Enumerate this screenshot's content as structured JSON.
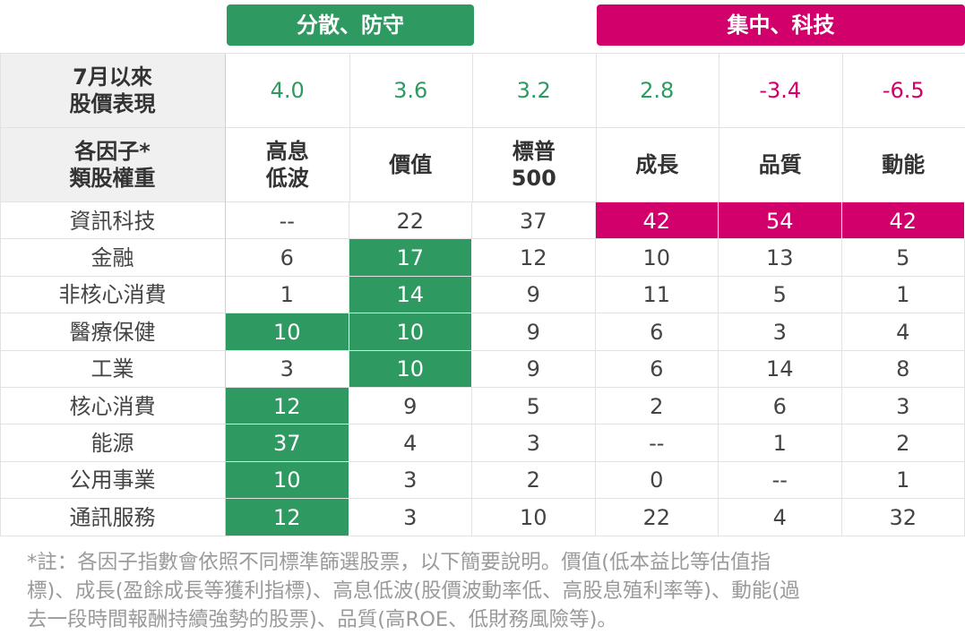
{
  "groups": [
    {
      "label": "分散、防守"
    },
    {
      "label": "集中、科技"
    }
  ],
  "performance": {
    "label": [
      "7月以來",
      "股價表現"
    ],
    "values": [
      "4.0",
      "3.6",
      "3.2",
      "2.8",
      "-3.4",
      "-6.5"
    ]
  },
  "factors": {
    "label": [
      "各因子*",
      "類股權重"
    ],
    "columns": [
      [
        "高息",
        "低波"
      ],
      [
        "價值"
      ],
      [
        "標普",
        "500"
      ],
      [
        "成長"
      ],
      [
        "品質"
      ],
      [
        "動能"
      ]
    ]
  },
  "table": {
    "rows": [
      {
        "label": "資訊科技",
        "values": [
          "--",
          "22",
          "37",
          "42",
          "54",
          "42"
        ]
      },
      {
        "label": "金融",
        "values": [
          "6",
          "17",
          "12",
          "10",
          "13",
          "5"
        ]
      },
      {
        "label": "非核心消費",
        "values": [
          "1",
          "14",
          "9",
          "11",
          "5",
          "1"
        ]
      },
      {
        "label": "醫療保健",
        "values": [
          "10",
          "10",
          "9",
          "6",
          "3",
          "4"
        ]
      },
      {
        "label": "工業",
        "values": [
          "3",
          "10",
          "9",
          "6",
          "14",
          "8"
        ]
      },
      {
        "label": "核心消費",
        "values": [
          "12",
          "9",
          "5",
          "2",
          "6",
          "3"
        ]
      },
      {
        "label": "能源",
        "values": [
          "37",
          "4",
          "3",
          "--",
          "1",
          "2"
        ]
      },
      {
        "label": "公用事業",
        "values": [
          "10",
          "3",
          "2",
          "0",
          "--",
          "1"
        ]
      },
      {
        "label": "通訊服務",
        "values": [
          "12",
          "3",
          "10",
          "22",
          "4",
          "32"
        ]
      }
    ]
  },
  "footnote": [
    "*註：各因子指數會依照不同標準篩選股票，以下簡要說明。價值(低本益比等估值指",
    "標)、成長(盈餘成長等獲利指標)、高息低波(股價波動率低、高股息殖利率等)、動能(過",
    "去一段時間報酬持續強勢的股票)、品質(高ROE、低財務風險等)。"
  ]
}
